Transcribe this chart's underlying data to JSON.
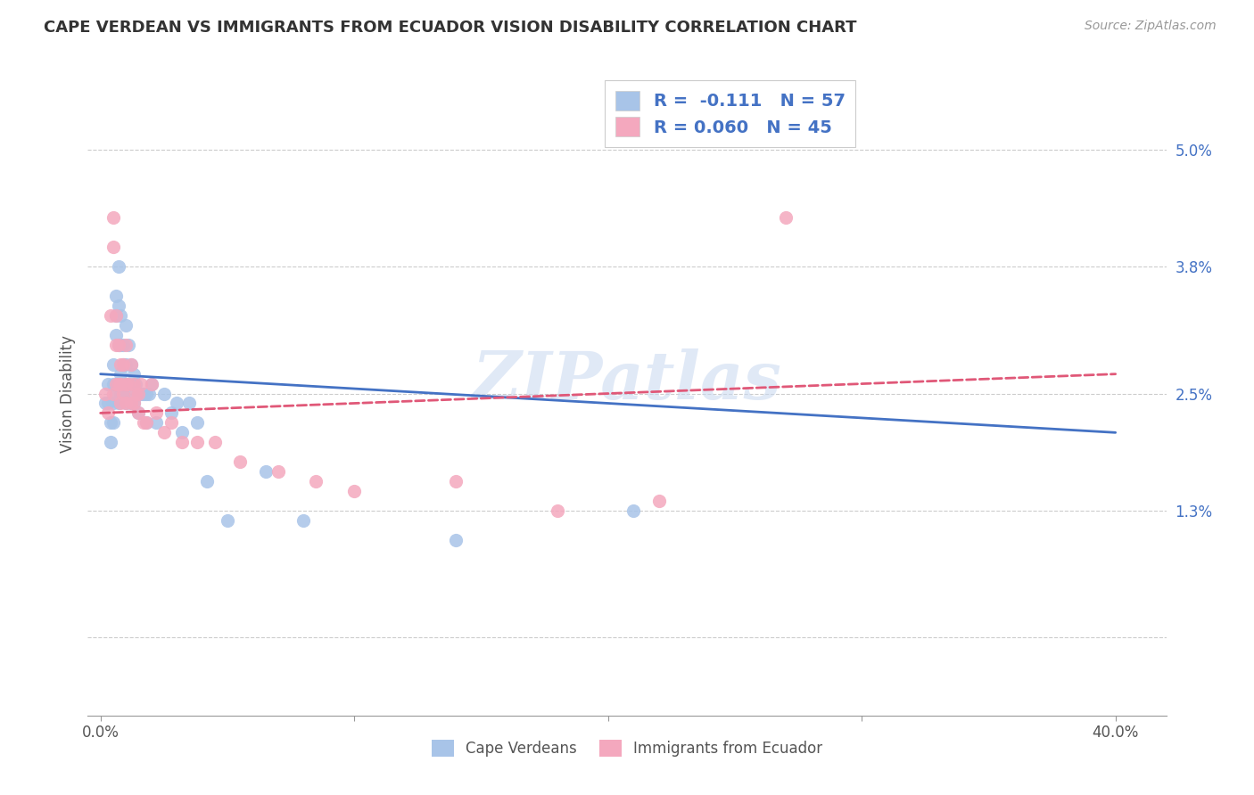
{
  "title": "CAPE VERDEAN VS IMMIGRANTS FROM ECUADOR VISION DISABILITY CORRELATION CHART",
  "source": "Source: ZipAtlas.com",
  "ylabel": "Vision Disability",
  "yticks": [
    0.0,
    0.013,
    0.025,
    0.038,
    0.05
  ],
  "ytick_labels": [
    "",
    "1.3%",
    "2.5%",
    "3.8%",
    "5.0%"
  ],
  "xticks": [
    0.0,
    0.1,
    0.2,
    0.3,
    0.4
  ],
  "xtick_labels": [
    "0.0%",
    "",
    "",
    "",
    "40.0%"
  ],
  "xlim": [
    -0.005,
    0.42
  ],
  "ylim": [
    -0.008,
    0.058
  ],
  "color_blue": "#a8c4e8",
  "color_pink": "#f4a8be",
  "line_blue": "#4472c4",
  "line_pink": "#e05878",
  "watermark": "ZIPatlas",
  "blue_line_start": 0.027,
  "blue_line_end": 0.021,
  "pink_line_start": 0.023,
  "pink_line_end": 0.027,
  "cape_verdean_x": [
    0.002,
    0.003,
    0.003,
    0.004,
    0.004,
    0.005,
    0.005,
    0.005,
    0.005,
    0.006,
    0.006,
    0.006,
    0.006,
    0.007,
    0.007,
    0.007,
    0.007,
    0.007,
    0.008,
    0.008,
    0.008,
    0.008,
    0.009,
    0.009,
    0.009,
    0.01,
    0.01,
    0.01,
    0.01,
    0.011,
    0.011,
    0.012,
    0.012,
    0.013,
    0.013,
    0.014,
    0.015,
    0.015,
    0.016,
    0.017,
    0.018,
    0.018,
    0.019,
    0.02,
    0.022,
    0.025,
    0.028,
    0.03,
    0.032,
    0.035,
    0.038,
    0.042,
    0.05,
    0.065,
    0.08,
    0.14,
    0.21
  ],
  "cape_verdean_y": [
    0.024,
    0.026,
    0.024,
    0.022,
    0.02,
    0.028,
    0.026,
    0.024,
    0.022,
    0.035,
    0.033,
    0.031,
    0.025,
    0.038,
    0.034,
    0.03,
    0.026,
    0.024,
    0.033,
    0.03,
    0.027,
    0.025,
    0.03,
    0.028,
    0.025,
    0.032,
    0.028,
    0.026,
    0.024,
    0.03,
    0.025,
    0.028,
    0.024,
    0.027,
    0.024,
    0.026,
    0.025,
    0.023,
    0.025,
    0.025,
    0.025,
    0.022,
    0.025,
    0.026,
    0.022,
    0.025,
    0.023,
    0.024,
    0.021,
    0.024,
    0.022,
    0.016,
    0.012,
    0.017,
    0.012,
    0.01,
    0.013
  ],
  "ecuador_x": [
    0.002,
    0.003,
    0.004,
    0.005,
    0.005,
    0.005,
    0.006,
    0.006,
    0.006,
    0.007,
    0.007,
    0.008,
    0.008,
    0.008,
    0.009,
    0.009,
    0.01,
    0.01,
    0.01,
    0.011,
    0.012,
    0.012,
    0.013,
    0.013,
    0.014,
    0.015,
    0.015,
    0.016,
    0.017,
    0.018,
    0.02,
    0.022,
    0.025,
    0.028,
    0.032,
    0.038,
    0.045,
    0.055,
    0.07,
    0.085,
    0.1,
    0.14,
    0.18,
    0.22,
    0.27
  ],
  "ecuador_y": [
    0.025,
    0.023,
    0.033,
    0.043,
    0.04,
    0.025,
    0.033,
    0.03,
    0.026,
    0.03,
    0.026,
    0.028,
    0.026,
    0.024,
    0.028,
    0.025,
    0.03,
    0.026,
    0.024,
    0.026,
    0.028,
    0.024,
    0.026,
    0.024,
    0.025,
    0.025,
    0.023,
    0.026,
    0.022,
    0.022,
    0.026,
    0.023,
    0.021,
    0.022,
    0.02,
    0.02,
    0.02,
    0.018,
    0.017,
    0.016,
    0.015,
    0.016,
    0.013,
    0.014,
    0.043
  ]
}
